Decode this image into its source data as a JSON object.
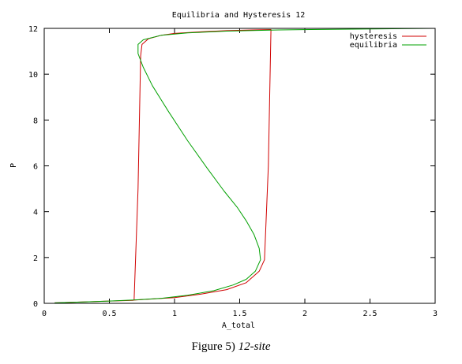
{
  "chart_data": {
    "type": "line",
    "title": "Equilibria and Hysteresis 12",
    "xlabel": "A_total",
    "ylabel": "P",
    "xlim": [
      0,
      3
    ],
    "ylim": [
      0,
      12
    ],
    "x_ticks": [
      0,
      0.5,
      1,
      1.5,
      2,
      2.5,
      3
    ],
    "x_tick_labels": [
      "0",
      "0.5",
      "1",
      "1.5",
      "2",
      "2.5",
      "3"
    ],
    "y_ticks": [
      0,
      2,
      4,
      6,
      8,
      10,
      12
    ],
    "y_tick_labels": [
      "0",
      "2",
      "4",
      "6",
      "8",
      "10",
      "12"
    ],
    "grid": false,
    "legend_position": "top-right",
    "series": [
      {
        "name": "hysteresis",
        "color": "#d00000",
        "points": [
          [
            0.08,
            0.02
          ],
          [
            0.3,
            0.06
          ],
          [
            0.5,
            0.1
          ],
          [
            0.68,
            0.13
          ],
          [
            0.69,
            0.14
          ],
          [
            0.72,
            5.0
          ],
          [
            0.74,
            10.8
          ],
          [
            0.75,
            11.3
          ],
          [
            0.8,
            11.55
          ],
          [
            0.9,
            11.7
          ],
          [
            1.0,
            11.78
          ],
          [
            1.2,
            11.85
          ],
          [
            1.4,
            11.9
          ],
          [
            1.6,
            11.93
          ],
          [
            1.74,
            11.95
          ],
          [
            1.72,
            6.0
          ],
          [
            1.69,
            1.9
          ],
          [
            1.65,
            1.4
          ],
          [
            1.55,
            0.9
          ],
          [
            1.4,
            0.6
          ],
          [
            1.2,
            0.4
          ],
          [
            1.0,
            0.25
          ],
          [
            0.8,
            0.18
          ],
          [
            0.69,
            0.14
          ]
        ]
      },
      {
        "name": "equilibria",
        "color": "#00a000",
        "points": [
          [
            0.08,
            0.02
          ],
          [
            0.3,
            0.06
          ],
          [
            0.5,
            0.1
          ],
          [
            0.7,
            0.15
          ],
          [
            0.9,
            0.22
          ],
          [
            1.1,
            0.35
          ],
          [
            1.3,
            0.55
          ],
          [
            1.45,
            0.8
          ],
          [
            1.55,
            1.05
          ],
          [
            1.62,
            1.4
          ],
          [
            1.66,
            1.9
          ],
          [
            1.65,
            2.4
          ],
          [
            1.61,
            3.0
          ],
          [
            1.55,
            3.6
          ],
          [
            1.48,
            4.2
          ],
          [
            1.38,
            4.9
          ],
          [
            1.25,
            5.9
          ],
          [
            1.1,
            7.1
          ],
          [
            0.95,
            8.4
          ],
          [
            0.83,
            9.5
          ],
          [
            0.76,
            10.3
          ],
          [
            0.72,
            10.9
          ],
          [
            0.72,
            11.3
          ],
          [
            0.76,
            11.5
          ],
          [
            0.9,
            11.7
          ],
          [
            1.1,
            11.8
          ],
          [
            1.4,
            11.88
          ],
          [
            1.8,
            11.93
          ],
          [
            2.2,
            11.96
          ],
          [
            2.6,
            11.98
          ],
          [
            3.0,
            12.0
          ]
        ]
      }
    ]
  },
  "caption": {
    "label": "Figure 5)",
    "text": "12-site"
  }
}
